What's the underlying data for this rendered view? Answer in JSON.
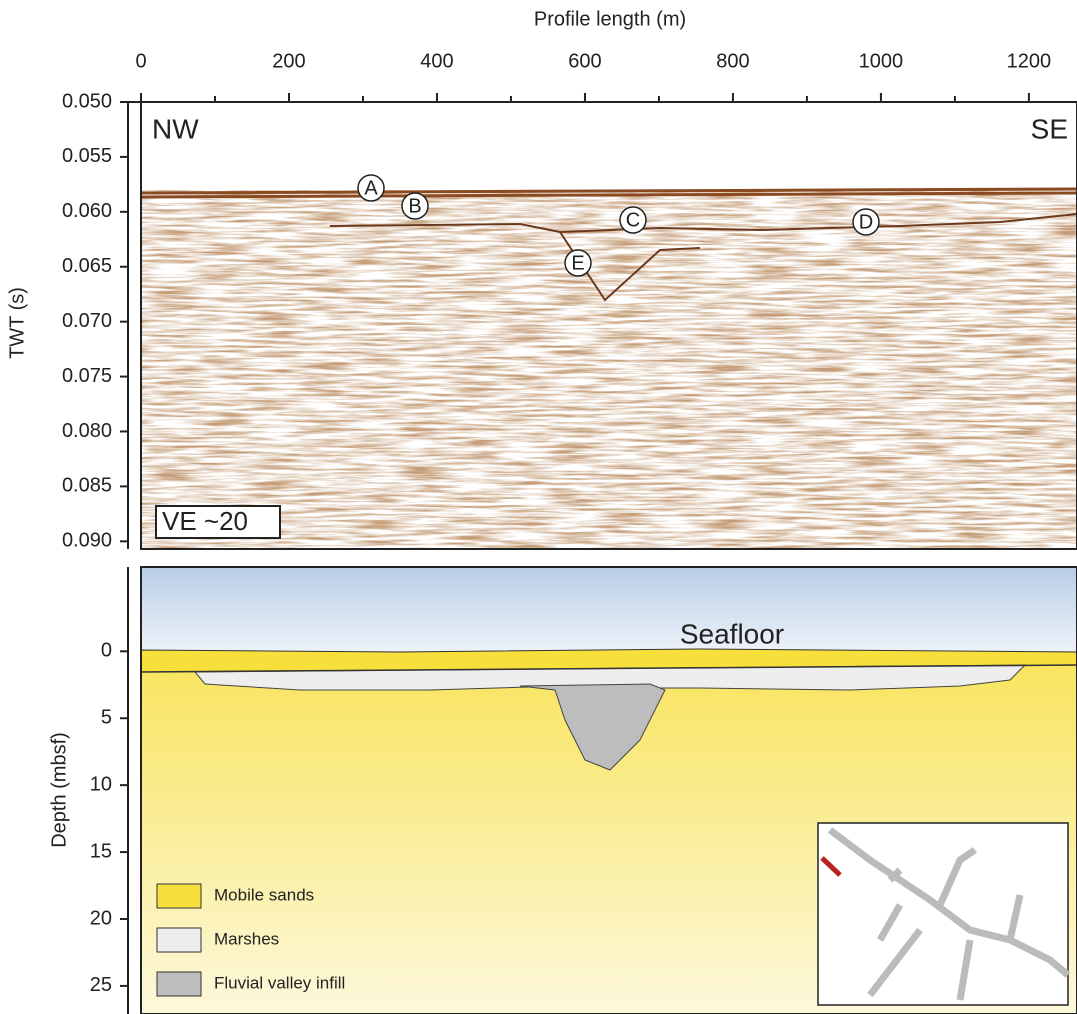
{
  "chart_data": [
    {
      "type": "seismic",
      "x_label": "Profile length (m)",
      "y_label": "TWT (s)",
      "xlim": [
        0,
        1265
      ],
      "xticks": [
        0,
        200,
        400,
        600,
        800,
        1000,
        1200
      ],
      "xminorticks": [
        100,
        300,
        500,
        700,
        900,
        1100
      ],
      "ylim": [
        0.05,
        0.0907
      ],
      "yticks": [
        {
          "value": 0.05,
          "label": "0.050"
        },
        {
          "value": 0.055,
          "label": "0.055"
        },
        {
          "value": 0.06,
          "label": "0.060"
        },
        {
          "value": 0.065,
          "label": "0.065"
        },
        {
          "value": 0.07,
          "label": "0.070"
        },
        {
          "value": 0.075,
          "label": "0.075"
        },
        {
          "value": 0.08,
          "label": "0.080"
        },
        {
          "value": 0.085,
          "label": "0.085"
        },
        {
          "value": 0.09,
          "label": "0.090"
        }
      ],
      "annotations": [
        "NW",
        "SE",
        "VE ~20",
        "A",
        "B",
        "C",
        "D",
        "E"
      ]
    },
    {
      "type": "section",
      "y_label": "Depth (mbsf)",
      "ylim": [
        -6.3,
        27.1
      ],
      "yticks": [
        0,
        5,
        10,
        15,
        20,
        25
      ],
      "annotations": [
        "Seafloor"
      ],
      "legend": [
        {
          "name": "Mobile sands",
          "color": "#f7df3c"
        },
        {
          "name": "Marshes",
          "color": "#eeeeee"
        },
        {
          "name": "Fluvial valley infill",
          "color": "#bdbdbd"
        }
      ]
    }
  ]
}
